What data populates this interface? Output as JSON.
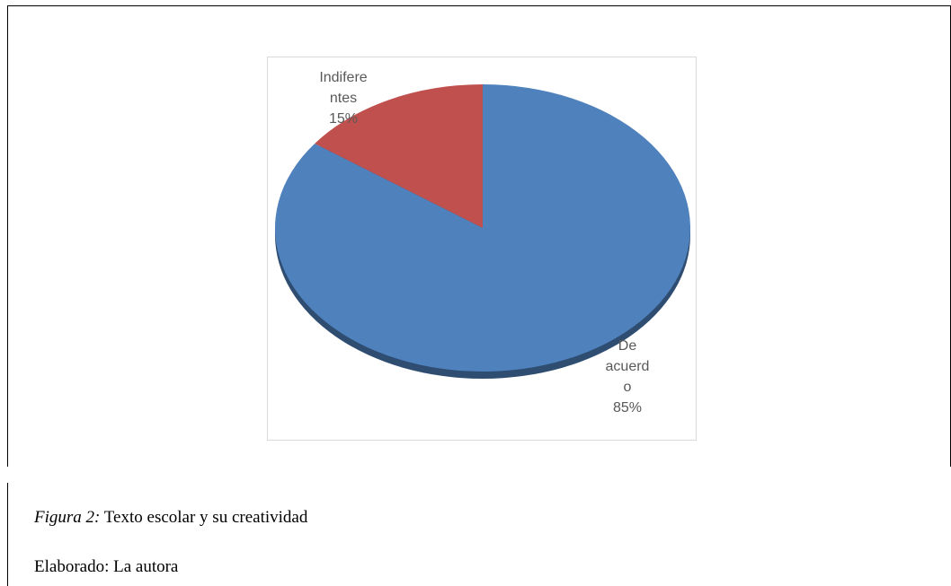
{
  "chart_data": {
    "type": "pie",
    "title": "",
    "slices": [
      {
        "label_lines": [
          "De",
          "acuerd",
          "o"
        ],
        "value": 85,
        "percent_label": "85%",
        "color": "#4f81bd"
      },
      {
        "label_lines": [
          "Indifere",
          "ntes"
        ],
        "value": 15,
        "percent_label": "15%",
        "color": "#c0504d"
      }
    ],
    "style": "3d-tilted",
    "legend": "none"
  },
  "caption": {
    "figure_label": "Figura 2:",
    "figure_text": " Texto escolar y su creatividad"
  },
  "credit": {
    "text": "Elaborado: La autora"
  }
}
